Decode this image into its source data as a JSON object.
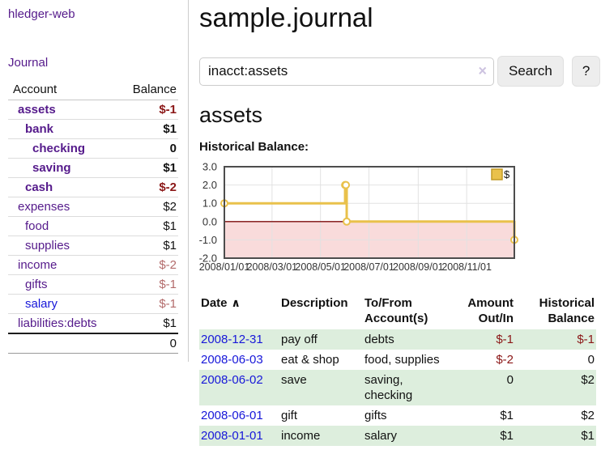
{
  "colors": {
    "link_purple": "#551a8b",
    "link_blue": "#1717d9",
    "negative_strong": "#8b1717",
    "negative_muted": "#b36b6b",
    "row_highlight_green": "#ddeedd",
    "chart_gold": "#e9c14b",
    "chart_negative_pink": "#f9dbdb"
  },
  "app": {
    "title": "hledger-web"
  },
  "sidebar": {
    "journal_link": "Journal",
    "accounts_table": {
      "headers": {
        "account": "Account",
        "balance": "Balance"
      },
      "rows": [
        {
          "name": "assets",
          "balance": "$-1",
          "indent": 0,
          "bold": true
        },
        {
          "name": "bank",
          "balance": "$1",
          "indent": 1,
          "bold": true
        },
        {
          "name": "checking",
          "balance": "0",
          "indent": 2,
          "bold": true
        },
        {
          "name": "saving",
          "balance": "$1",
          "indent": 2,
          "bold": true
        },
        {
          "name": "cash",
          "balance": "$-2",
          "indent": 1,
          "bold": true
        },
        {
          "name": "expenses",
          "balance": "$2",
          "indent": 0,
          "bold": false
        },
        {
          "name": "food",
          "balance": "$1",
          "indent": 1,
          "bold": false
        },
        {
          "name": "supplies",
          "balance": "$1",
          "indent": 1,
          "bold": false
        },
        {
          "name": "income",
          "balance": "$-2",
          "indent": 0,
          "bold": false
        },
        {
          "name": "gifts",
          "balance": "$-1",
          "indent": 1,
          "bold": false
        },
        {
          "name": "salary",
          "balance": "$-1",
          "indent": 1,
          "bold": false,
          "link_color": "blue"
        },
        {
          "name": "liabilities:debts",
          "balance": "$1",
          "indent": 0,
          "bold": false
        }
      ],
      "total": "0"
    }
  },
  "header": {
    "title": "sample.journal"
  },
  "search": {
    "value": "inacct:assets",
    "clear_icon": "×",
    "button_label": "Search",
    "help_label": "?"
  },
  "register": {
    "heading": "assets",
    "chart_label": "Historical Balance:",
    "table": {
      "sort_icon": "∧",
      "headers": [
        {
          "line1": "Date",
          "line2": "",
          "align": "left",
          "sorted": "asc"
        },
        {
          "line1": "Description",
          "line2": "",
          "align": "left"
        },
        {
          "line1": "To/From",
          "line2": "Account(s)",
          "align": "left"
        },
        {
          "line1": "Amount",
          "line2": "Out/In",
          "align": "right"
        },
        {
          "line1": "Historical",
          "line2": "Balance",
          "align": "right"
        }
      ],
      "rows": [
        {
          "date": "2008-12-31",
          "description": "pay off",
          "accounts": "debts",
          "amount": "$-1",
          "balance": "$-1"
        },
        {
          "date": "2008-06-03",
          "description": "eat & shop",
          "accounts": "food, supplies",
          "amount": "$-2",
          "balance": "0"
        },
        {
          "date": "2008-06-02",
          "description": "save",
          "accounts": "saving, checking",
          "amount": "0",
          "balance": "$2"
        },
        {
          "date": "2008-06-01",
          "description": "gift",
          "accounts": "gifts",
          "amount": "$1",
          "balance": "$2"
        },
        {
          "date": "2008-01-01",
          "description": "income",
          "accounts": "salary",
          "amount": "$1",
          "balance": "$1"
        }
      ]
    }
  },
  "chart_data": {
    "type": "line",
    "step": true,
    "title": "Historical Balance",
    "xlabel": "",
    "ylabel": "",
    "series": [
      {
        "name": "$",
        "color": "#e9c14b",
        "points": [
          {
            "date": "2008-01-01",
            "value": 1
          },
          {
            "date": "2008-06-01",
            "value": 2
          },
          {
            "date": "2008-06-02",
            "value": 2
          },
          {
            "date": "2008-06-03",
            "value": 0
          },
          {
            "date": "2008-12-31",
            "value": -1
          }
        ]
      }
    ],
    "x_domain": [
      "2008-01-01",
      "2008-12-31"
    ],
    "x_tick_labels": [
      "2008/01/01",
      "2008/03/01",
      "2008/05/01",
      "2008/07/01",
      "2008/09/01",
      "2008/11/01"
    ],
    "y_ticks": [
      3,
      2,
      1,
      0,
      -1,
      -2
    ],
    "ylim": [
      -2,
      3
    ],
    "grid": true,
    "legend": {
      "label": "$",
      "position": "top-right"
    },
    "negative_region_fill": "#f9dbdb",
    "zero_line_color": "#7d0e0e"
  }
}
